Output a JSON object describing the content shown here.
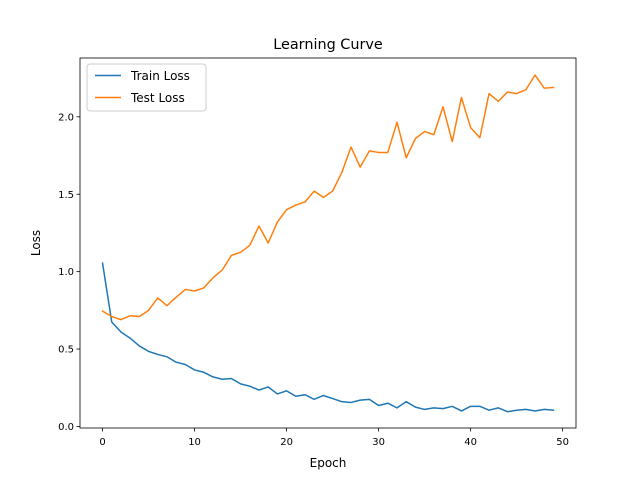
{
  "chart_data": {
    "type": "line",
    "title": "Learning Curve",
    "xlabel": "Epoch",
    "ylabel": "Loss",
    "xlim": [
      -2.45,
      51.45
    ],
    "ylim": [
      -0.01,
      2.38
    ],
    "xticks": [
      0,
      10,
      20,
      30,
      40,
      50
    ],
    "yticks": [
      0.0,
      0.5,
      1.0,
      1.5,
      2.0
    ],
    "xtick_labels": [
      "0",
      "10",
      "20",
      "30",
      "40",
      "50"
    ],
    "ytick_labels": [
      "0.0",
      "0.5",
      "1.0",
      "1.5",
      "2.0"
    ],
    "grid": false,
    "legend_position": "top-left",
    "x": [
      0,
      1,
      2,
      3,
      4,
      5,
      6,
      7,
      8,
      9,
      10,
      11,
      12,
      13,
      14,
      15,
      16,
      17,
      18,
      19,
      20,
      21,
      22,
      23,
      24,
      25,
      26,
      27,
      28,
      29,
      30,
      31,
      32,
      33,
      34,
      35,
      36,
      37,
      38,
      39,
      40,
      41,
      42,
      43,
      44,
      45,
      46,
      47,
      48,
      49
    ],
    "series": [
      {
        "name": "Train Loss",
        "color": "#1f77b4",
        "values": [
          1.055,
          0.675,
          0.61,
          0.57,
          0.52,
          0.485,
          0.465,
          0.45,
          0.415,
          0.4,
          0.365,
          0.35,
          0.32,
          0.305,
          0.31,
          0.275,
          0.26,
          0.235,
          0.255,
          0.21,
          0.23,
          0.195,
          0.205,
          0.175,
          0.2,
          0.18,
          0.16,
          0.155,
          0.17,
          0.175,
          0.135,
          0.15,
          0.12,
          0.16,
          0.125,
          0.11,
          0.12,
          0.115,
          0.13,
          0.1,
          0.13,
          0.13,
          0.105,
          0.12,
          0.095,
          0.105,
          0.11,
          0.1,
          0.11,
          0.105
        ]
      },
      {
        "name": "Test Loss",
        "color": "#ff7f0e",
        "values": [
          0.745,
          0.71,
          0.69,
          0.715,
          0.71,
          0.75,
          0.83,
          0.78,
          0.835,
          0.885,
          0.875,
          0.895,
          0.96,
          1.01,
          1.105,
          1.125,
          1.17,
          1.295,
          1.185,
          1.32,
          1.4,
          1.43,
          1.45,
          1.52,
          1.48,
          1.52,
          1.64,
          1.805,
          1.675,
          1.78,
          1.77,
          1.77,
          1.965,
          1.735,
          1.86,
          1.905,
          1.885,
          2.065,
          1.84,
          2.125,
          1.93,
          1.865,
          2.15,
          2.1,
          2.16,
          2.15,
          2.175,
          2.27,
          2.185,
          2.19
        ]
      }
    ]
  }
}
